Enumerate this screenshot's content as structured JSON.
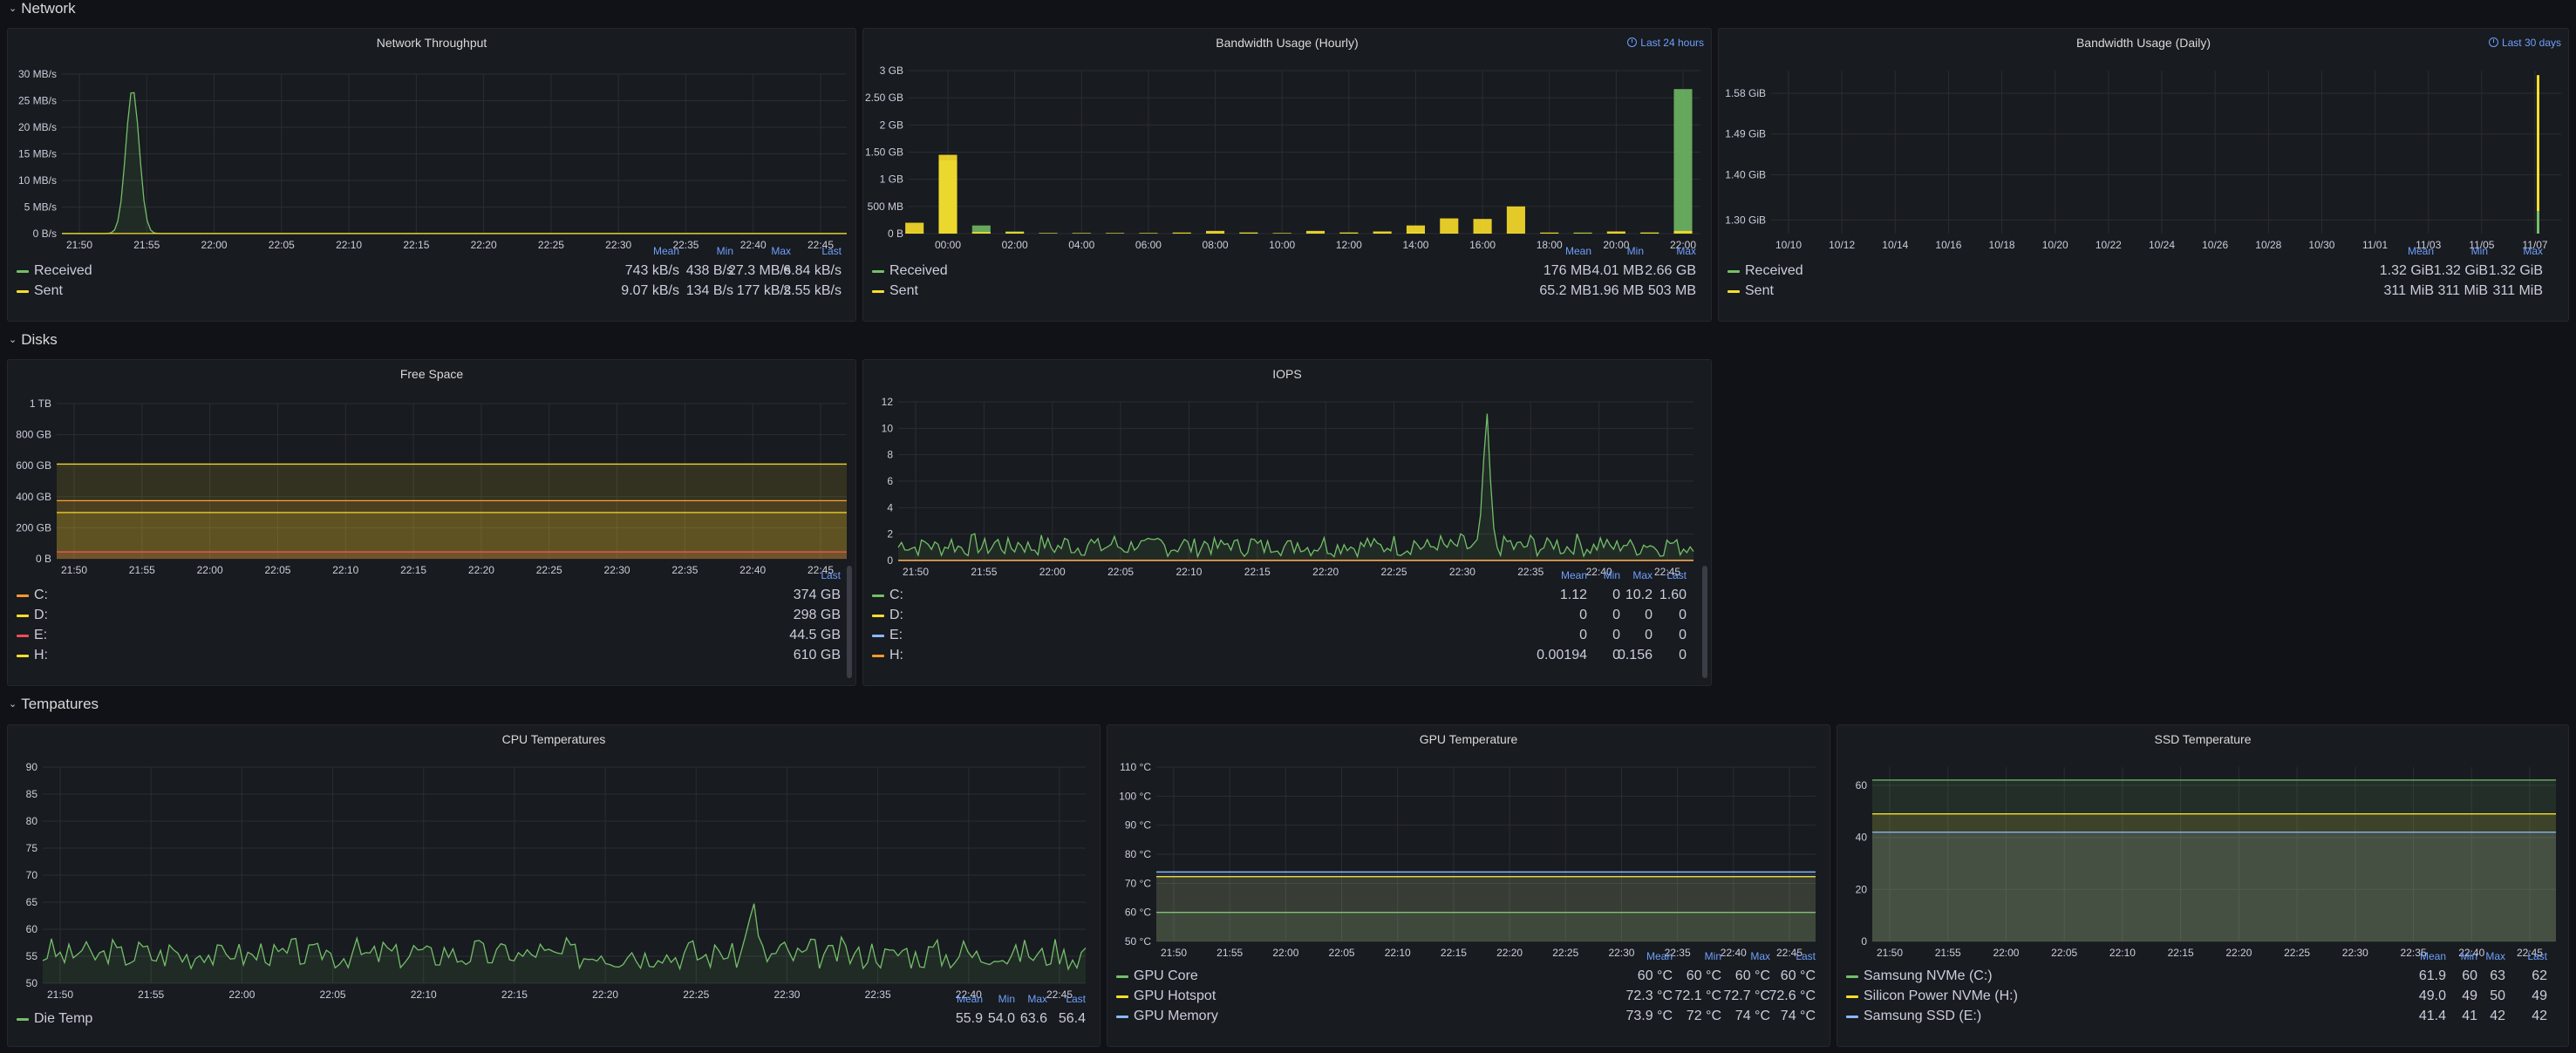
{
  "rows": [
    {
      "title": "Network",
      "chevron": "chevron-down-icon"
    },
    {
      "title": "Disks",
      "chevron": "chevron-down-icon"
    },
    {
      "title": "Tempatures",
      "chevron": "chevron-down-icon"
    }
  ],
  "colors": {
    "green": "#73bf69",
    "yellow": "#fade2a",
    "orange": "#ff9830",
    "red": "#f2495c",
    "blue": "#8ab8ff"
  },
  "panels": [
    {
      "title": "Network Throughput",
      "time": "",
      "chart_data": {
        "type": "line",
        "x_ticks": [
          "21:50",
          "21:55",
          "22:00",
          "22:05",
          "22:10",
          "22:15",
          "22:20",
          "22:25",
          "22:30",
          "22:35",
          "22:40",
          "22:45"
        ],
        "y_ticks": [
          "0 B/s",
          "5 MB/s",
          "10 MB/s",
          "15 MB/s",
          "20 MB/s",
          "25 MB/s",
          "30 MB/s"
        ],
        "ylim": [
          0,
          30
        ],
        "series": [
          {
            "name": "Received",
            "color": "#73bf69",
            "shape": "spike",
            "peak_at": 0.09,
            "peak": 27.3,
            "base": 0.0
          },
          {
            "name": "Sent",
            "color": "#fade2a",
            "shape": "flat",
            "base": 0.01
          }
        ]
      },
      "legend": {
        "columns": [
          "Mean",
          "Min",
          "Max",
          "Last"
        ],
        "rows": [
          {
            "name": "Received",
            "color": "#73bf69",
            "values": [
              "743 kB/s",
              "438 B/s",
              "27.3 MB/s",
              "6.84 kB/s"
            ]
          },
          {
            "name": "Sent",
            "color": "#fade2a",
            "values": [
              "9.07 kB/s",
              "134 B/s",
              "177 kB/s",
              "2.55 kB/s"
            ]
          }
        ]
      }
    },
    {
      "title": "Bandwidth Usage (Hourly)",
      "time": "Last 24 hours",
      "chart_data": {
        "type": "bar",
        "x_ticks": [
          "00:00",
          "02:00",
          "04:00",
          "06:00",
          "08:00",
          "10:00",
          "12:00",
          "14:00",
          "16:00",
          "18:00",
          "20:00",
          "22:00"
        ],
        "y_ticks": [
          "0 B",
          "500 MB",
          "1 GB",
          "1.50 GB",
          "2 GB",
          "2.50 GB",
          "3 GB"
        ],
        "ylim": [
          0,
          3
        ],
        "series": [
          {
            "name": "Received",
            "color": "#73bf69",
            "values": [
              0.02,
              1.35,
              0.15,
              0.04,
              0.01,
              0.01,
              0.01,
              0.01,
              0.01,
              0.01,
              0.02,
              0.01,
              0.02,
              0.02,
              0.02,
              0.03,
              0.01,
              0.01,
              0.01,
              0.01,
              0.02,
              0.02,
              0.02,
              2.66
            ]
          },
          {
            "name": "Sent",
            "color": "#fade2a",
            "values": [
              0.2,
              1.45,
              0.03,
              0.03,
              0.01,
              0.01,
              0.01,
              0.01,
              0.02,
              0.05,
              0.02,
              0.01,
              0.05,
              0.02,
              0.04,
              0.15,
              0.28,
              0.27,
              0.5,
              0.02,
              0.01,
              0.04,
              0.02,
              0.05
            ]
          }
        ]
      },
      "legend": {
        "columns": [
          "Mean",
          "Min",
          "Max"
        ],
        "rows": [
          {
            "name": "Received",
            "color": "#73bf69",
            "values": [
              "176 MB",
              "4.01 MB",
              "2.66 GB"
            ]
          },
          {
            "name": "Sent",
            "color": "#fade2a",
            "values": [
              "65.2 MB",
              "1.96 MB",
              "503 MB"
            ]
          }
        ]
      }
    },
    {
      "title": "Bandwidth Usage (Daily)",
      "time": "Last 30 days",
      "chart_data": {
        "type": "bar",
        "x_ticks": [
          "10/10",
          "10/12",
          "10/14",
          "10/16",
          "10/18",
          "10/20",
          "10/22",
          "10/24",
          "10/26",
          "10/28",
          "10/30",
          "11/01",
          "11/03",
          "11/05",
          "11/07"
        ],
        "y_ticks": [
          "1.30 GiB",
          "1.40 GiB",
          "1.49 GiB",
          "1.58 GiB"
        ],
        "ylim": [
          1.27,
          1.63
        ],
        "series": [
          {
            "name": "Received",
            "color": "#73bf69",
            "values": [
              1.32
            ]
          },
          {
            "name": "Sent",
            "color": "#fade2a",
            "values": [
              1.62
            ]
          }
        ]
      },
      "legend": {
        "columns": [
          "Mean",
          "Min",
          "Max"
        ],
        "rows": [
          {
            "name": "Received",
            "color": "#73bf69",
            "values": [
              "1.32 GiB",
              "1.32 GiB",
              "1.32 GiB"
            ]
          },
          {
            "name": "Sent",
            "color": "#fade2a",
            "values": [
              "311 MiB",
              "311 MiB",
              "311 MiB"
            ]
          }
        ]
      }
    },
    {
      "title": "Free Space",
      "time": "",
      "chart_data": {
        "type": "area",
        "x_ticks": [
          "21:50",
          "21:55",
          "22:00",
          "22:05",
          "22:10",
          "22:15",
          "22:20",
          "22:25",
          "22:30",
          "22:35",
          "22:40",
          "22:45"
        ],
        "y_ticks": [
          "0 B",
          "200 GB",
          "400 GB",
          "600 GB",
          "800 GB",
          "1 TB"
        ],
        "ylim": [
          0,
          1000
        ],
        "series": [
          {
            "name": "C:",
            "color": "#ff9830",
            "shape": "flat",
            "base": 374
          },
          {
            "name": "D:",
            "color": "#fade2a",
            "shape": "flat",
            "base": 298
          },
          {
            "name": "E:",
            "color": "#f2495c",
            "shape": "flat",
            "base": 44.5
          },
          {
            "name": "H:",
            "color": "#fade2a",
            "shape": "flat",
            "base": 610
          }
        ]
      },
      "legend": {
        "columns": [
          "Last"
        ],
        "rows": [
          {
            "name": "C:",
            "color": "#ff9830",
            "values": [
              "374 GB"
            ]
          },
          {
            "name": "D:",
            "color": "#fade2a",
            "values": [
              "298 GB"
            ]
          },
          {
            "name": "E:",
            "color": "#f2495c",
            "values": [
              "44.5 GB"
            ]
          },
          {
            "name": "H:",
            "color": "#fade2a",
            "values": [
              "610 GB"
            ]
          }
        ]
      }
    },
    {
      "title": "IOPS",
      "time": "",
      "chart_data": {
        "type": "line",
        "x_ticks": [
          "21:50",
          "21:55",
          "22:00",
          "22:05",
          "22:10",
          "22:15",
          "22:20",
          "22:25",
          "22:30",
          "22:35",
          "22:40",
          "22:45"
        ],
        "y_ticks": [
          "0",
          "2",
          "4",
          "6",
          "8",
          "10",
          "12"
        ],
        "ylim": [
          0,
          12
        ],
        "series": [
          {
            "name": "C:",
            "color": "#73bf69",
            "shape": "noise",
            "base": 1.0,
            "amp": 1.2,
            "peak_at": 0.74,
            "peak": 10.2,
            "seed": 7
          },
          {
            "name": "D:",
            "color": "#fade2a",
            "shape": "flat",
            "base": 0
          },
          {
            "name": "E:",
            "color": "#8ab8ff",
            "shape": "flat",
            "base": 0
          },
          {
            "name": "H:",
            "color": "#ff9830",
            "shape": "flat",
            "base": 0.02
          }
        ]
      },
      "legend": {
        "columns": [
          "Mean",
          "Min",
          "Max",
          "Last"
        ],
        "rows": [
          {
            "name": "C:",
            "color": "#73bf69",
            "values": [
              "1.12",
              "0",
              "10.2",
              "1.60"
            ]
          },
          {
            "name": "D:",
            "color": "#fade2a",
            "values": [
              "0",
              "0",
              "0",
              "0"
            ]
          },
          {
            "name": "E:",
            "color": "#8ab8ff",
            "values": [
              "0",
              "0",
              "0",
              "0"
            ]
          },
          {
            "name": "H:",
            "color": "#ff9830",
            "values": [
              "0.00194",
              "0",
              "0.156",
              "0"
            ]
          }
        ]
      }
    },
    {
      "title": "CPU Temperatures",
      "time": "",
      "chart_data": {
        "type": "line",
        "x_ticks": [
          "21:50",
          "21:55",
          "22:00",
          "22:05",
          "22:10",
          "22:15",
          "22:20",
          "22:25",
          "22:30",
          "22:35",
          "22:40",
          "22:45"
        ],
        "y_ticks": [
          "50",
          "55",
          "60",
          "65",
          "70",
          "75",
          "80",
          "85",
          "90"
        ],
        "ylim": [
          50,
          90
        ],
        "series": [
          {
            "name": "Die Temp",
            "color": "#73bf69",
            "shape": "noise",
            "base": 55,
            "amp": 4,
            "peak_at": 0.68,
            "peak": 63.6,
            "seed": 3
          }
        ]
      },
      "legend": {
        "columns": [
          "Mean",
          "Min",
          "Max",
          "Last"
        ],
        "rows": [
          {
            "name": "Die Temp",
            "color": "#73bf69",
            "values": [
              "55.9",
              "54.0",
              "63.6",
              "56.4"
            ]
          }
        ]
      }
    },
    {
      "title": "GPU Temperature",
      "time": "",
      "chart_data": {
        "type": "line",
        "x_ticks": [
          "21:50",
          "21:55",
          "22:00",
          "22:05",
          "22:10",
          "22:15",
          "22:20",
          "22:25",
          "22:30",
          "22:35",
          "22:40",
          "22:45"
        ],
        "y_ticks": [
          "50 °C",
          "60 °C",
          "70 °C",
          "80 °C",
          "90 °C",
          "100 °C",
          "110 °C"
        ],
        "ylim": [
          50,
          110
        ],
        "series": [
          {
            "name": "GPU Core",
            "color": "#73bf69",
            "shape": "flat",
            "base": 60
          },
          {
            "name": "GPU Hotspot",
            "color": "#fade2a",
            "shape": "flat",
            "base": 72.3
          },
          {
            "name": "GPU Memory",
            "color": "#8ab8ff",
            "shape": "flat",
            "base": 73.9
          }
        ]
      },
      "legend": {
        "columns": [
          "Mean",
          "Min",
          "Max",
          "Last"
        ],
        "rows": [
          {
            "name": "GPU Core",
            "color": "#73bf69",
            "values": [
              "60 °C",
              "60 °C",
              "60 °C",
              "60 °C"
            ]
          },
          {
            "name": "GPU Hotspot",
            "color": "#fade2a",
            "values": [
              "72.3 °C",
              "72.1 °C",
              "72.7 °C",
              "72.6 °C"
            ]
          },
          {
            "name": "GPU Memory",
            "color": "#8ab8ff",
            "values": [
              "73.9 °C",
              "72 °C",
              "74 °C",
              "74 °C"
            ]
          }
        ]
      }
    },
    {
      "title": "SSD Temperature",
      "time": "",
      "chart_data": {
        "type": "area",
        "x_ticks": [
          "21:50",
          "21:55",
          "22:00",
          "22:05",
          "22:10",
          "22:15",
          "22:20",
          "22:25",
          "22:30",
          "22:35",
          "22:40",
          "22:45"
        ],
        "y_ticks": [
          "0",
          "20",
          "40",
          "60"
        ],
        "ylim": [
          0,
          67
        ],
        "series": [
          {
            "name": "Samsung NVMe (C:)",
            "color": "#73bf69",
            "shape": "flat",
            "base": 62
          },
          {
            "name": "Silicon Power NVMe (H:)",
            "color": "#fade2a",
            "shape": "flat",
            "base": 49
          },
          {
            "name": "Samsung SSD (E:)",
            "color": "#8ab8ff",
            "shape": "flat",
            "base": 42
          }
        ]
      },
      "legend": {
        "columns": [
          "Mean",
          "Min",
          "Max",
          "Last"
        ],
        "rows": [
          {
            "name": "Samsung NVMe (C:)",
            "color": "#73bf69",
            "values": [
              "61.9",
              "60",
              "63",
              "62"
            ]
          },
          {
            "name": "Silicon Power NVMe (H:)",
            "color": "#fade2a",
            "values": [
              "49.0",
              "49",
              "50",
              "49"
            ]
          },
          {
            "name": "Samsung SSD (E:)",
            "color": "#8ab8ff",
            "values": [
              "41.4",
              "41",
              "42",
              "42"
            ]
          }
        ]
      }
    }
  ]
}
